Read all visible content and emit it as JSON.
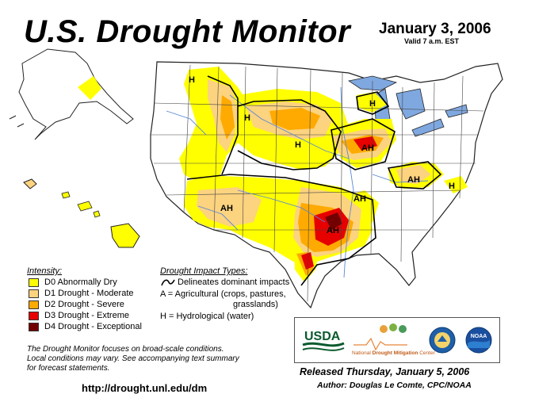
{
  "header": {
    "title": "U.S. Drought Monitor",
    "date": "January 3, 2006",
    "valid": "Valid 7 a.m. EST"
  },
  "legend": {
    "intensity_heading": "Intensity:",
    "items": [
      {
        "label": "D0 Abnormally Dry",
        "color": "#ffff00"
      },
      {
        "label": "D1 Drought - Moderate",
        "color": "#fcd37f"
      },
      {
        "label": "D2 Drought - Severe",
        "color": "#ffaa00"
      },
      {
        "label": "D3 Drought - Extreme",
        "color": "#e60000"
      },
      {
        "label": "D4 Drought - Exceptional",
        "color": "#730000"
      }
    ],
    "impact_heading": "Drought Impact Types:",
    "impact_line": "Delineates dominant impacts",
    "impact_a_1": "A = Agricultural (crops, pastures,",
    "impact_a_2": "grasslands)",
    "impact_h": "H = Hydrological (water)"
  },
  "map_labels": [
    "H",
    "H",
    "H",
    "H",
    "AH",
    "AH",
    "AH",
    "AH",
    "AH",
    "H"
  ],
  "footer": {
    "note_1": "The Drought Monitor focuses on broad-scale conditions.",
    "note_2": "Local conditions may vary.  See accompanying text summary",
    "note_3": "for forecast statements.",
    "url": "http://drought.unl.edu/dm",
    "released": "Released Thursday, January 5, 2006",
    "author": "Author:  Douglas Le Comte, CPC/NOAA"
  },
  "logos": {
    "usda": "USDA",
    "ndmc_1": "National ",
    "ndmc_2": "Drought Mitigation",
    "ndmc_3": " Center",
    "noaa": "NOAA"
  },
  "colors": {
    "water": "#7fa8e0",
    "land": "#ffffff",
    "border": "#222222"
  }
}
